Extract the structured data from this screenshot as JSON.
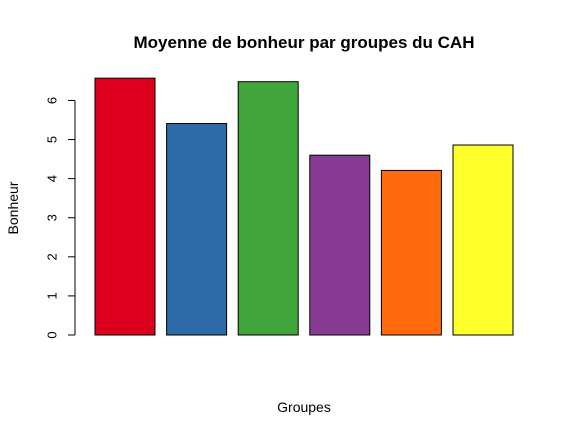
{
  "chart_data": {
    "type": "bar",
    "title": "Moyenne de bonheur par groupes du CAH",
    "xlabel": "Groupes",
    "ylabel": "Bonheur",
    "categories": [
      "",
      "",
      "",
      "",
      "",
      ""
    ],
    "values": [
      6.57,
      5.41,
      6.48,
      4.6,
      4.21,
      4.86
    ],
    "colors": [
      "#dc001c",
      "#2c6aaa",
      "#40a63c",
      "#873b95",
      "#ff6a0c",
      "#ffff2b"
    ],
    "ylim": [
      0,
      6.6
    ],
    "yticks": [
      0,
      1,
      2,
      3,
      4,
      5,
      6
    ],
    "ytick_labels": [
      "0",
      "1",
      "2",
      "3",
      "4",
      "5",
      "6"
    ],
    "grid": false,
    "legend": "none"
  }
}
